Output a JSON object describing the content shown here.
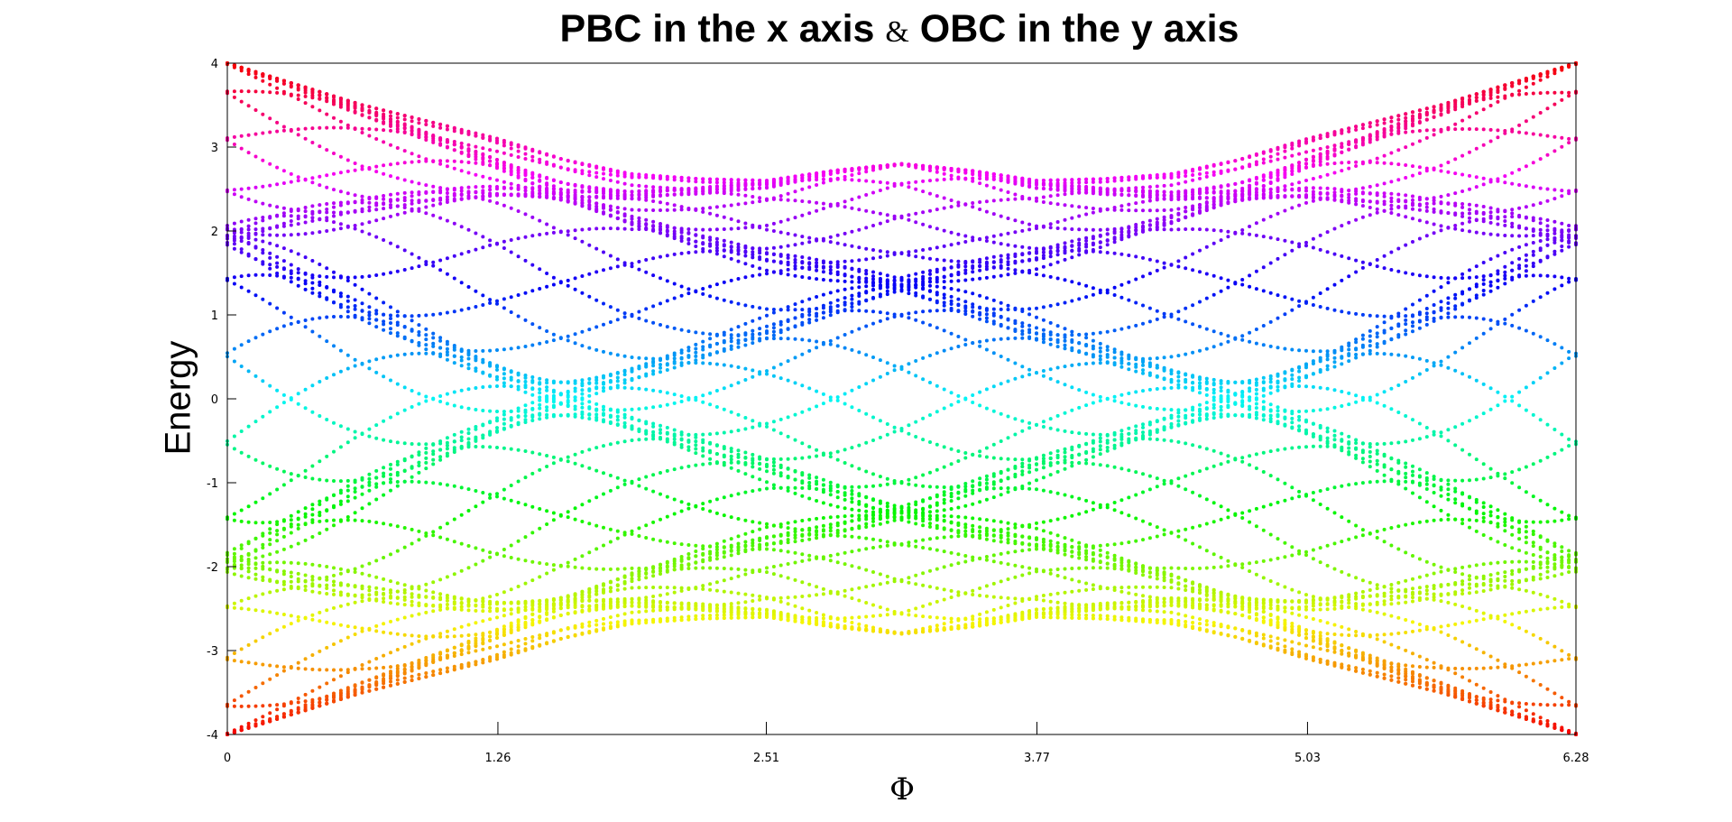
{
  "chart_data": {
    "type": "scatter",
    "title": "PBC in the x axis & OBC in the y axis",
    "title_parts": [
      "PBC in the x axis ",
      "&",
      " OBC in the y axis"
    ],
    "xlabel": "Φ",
    "ylabel": "Energy",
    "xlim": [
      0,
      6.28
    ],
    "ylim": [
      -4,
      4
    ],
    "xticks": [
      "0",
      "1.26",
      "2.51",
      "3.77",
      "5.03",
      "6.28"
    ],
    "xtick_values": [
      0,
      1.26,
      2.51,
      3.77,
      5.03,
      6.28
    ],
    "yticks": [
      "4",
      "3",
      "2",
      "1",
      "0",
      "-1",
      "-2",
      "-3",
      "-4"
    ],
    "ytick_values": [
      4,
      3,
      2,
      1,
      0,
      -1,
      -2,
      -3,
      -4
    ],
    "grid": false,
    "legend": "none",
    "colormap": "hsv by |energy|: red at ±4, magenta/blue above 0, cyan at 0, green/yellow/orange below 0",
    "band_outer_envelope": [
      [
        0,
        4.0
      ],
      [
        0.63,
        3.5
      ],
      [
        1.26,
        3.1
      ],
      [
        1.57,
        2.85
      ],
      [
        1.88,
        2.68
      ],
      [
        2.2,
        2.62
      ],
      [
        2.51,
        2.6
      ],
      [
        2.83,
        2.72
      ],
      [
        3.14,
        2.8
      ],
      [
        3.46,
        2.72
      ],
      [
        3.77,
        2.6
      ],
      [
        4.08,
        2.62
      ],
      [
        4.4,
        2.68
      ],
      [
        4.71,
        2.85
      ],
      [
        5.03,
        3.1
      ],
      [
        5.65,
        3.5
      ],
      [
        6.28,
        4.0
      ]
    ]
  }
}
